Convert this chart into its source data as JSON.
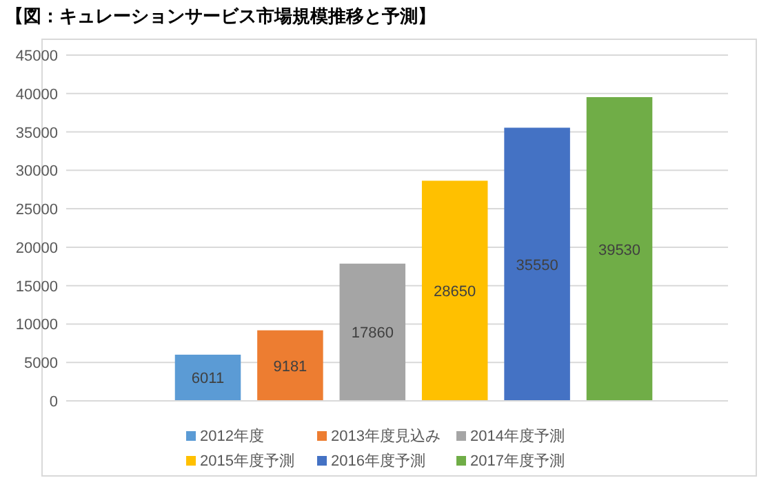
{
  "chart_data": {
    "type": "bar",
    "title": "【図：キュレーションサービス市場規模推移と予測】",
    "categories": [
      null
    ],
    "series": [
      {
        "name": "2012年度",
        "color": "#5b9bd5",
        "values": [
          6011
        ]
      },
      {
        "name": "2013年度見込み",
        "color": "#ed7d31",
        "values": [
          9181
        ]
      },
      {
        "name": "2014年度予測",
        "color": "#a5a5a5",
        "values": [
          17860
        ]
      },
      {
        "name": "2015年度予測",
        "color": "#ffc000",
        "values": [
          28650
        ]
      },
      {
        "name": "2016年度予測",
        "color": "#4472c4",
        "values": [
          35550
        ]
      },
      {
        "name": "2017年度予測",
        "color": "#70ad47",
        "values": [
          39530
        ]
      }
    ],
    "ylim": [
      0,
      45000
    ],
    "yticks": [
      0,
      5000,
      10000,
      15000,
      20000,
      25000,
      30000,
      35000,
      40000,
      45000
    ],
    "grid": "y",
    "data_labels": true,
    "legend": "bottom",
    "tick_labels": "y"
  }
}
